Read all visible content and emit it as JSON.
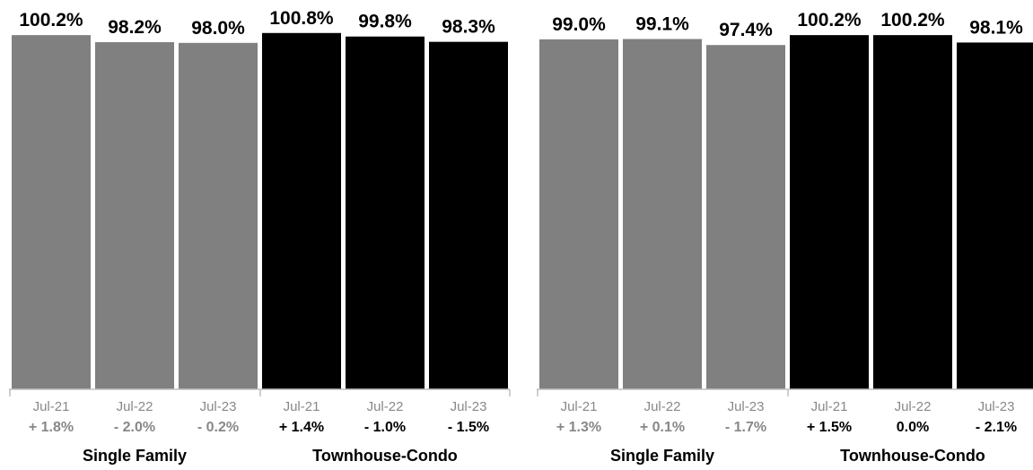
{
  "colors": {
    "single_family": "#808080",
    "townhouse_condo": "#000000",
    "axis": "#bfbfbf",
    "period_text": "#888888"
  },
  "chart_data": [
    {
      "type": "bar",
      "ylim": [
        0,
        101
      ],
      "grid": false,
      "groups": [
        {
          "name": "Single Family",
          "color_key": "single_family",
          "categories": [
            "Jul-21",
            "Jul-22",
            "Jul-23"
          ],
          "values": [
            100.2,
            98.2,
            98.0
          ],
          "value_labels": [
            "100.2%",
            "98.2%",
            "98.0%"
          ],
          "changes": [
            "+ 1.8%",
            "- 2.0%",
            "- 0.2%"
          ]
        },
        {
          "name": "Townhouse-Condo",
          "color_key": "townhouse_condo",
          "categories": [
            "Jul-21",
            "Jul-22",
            "Jul-23"
          ],
          "values": [
            100.8,
            99.8,
            98.3
          ],
          "value_labels": [
            "100.8%",
            "99.8%",
            "98.3%"
          ],
          "changes": [
            "+ 1.4%",
            "- 1.0%",
            "- 1.5%"
          ]
        }
      ]
    },
    {
      "type": "bar",
      "ylim": [
        0,
        101
      ],
      "grid": false,
      "groups": [
        {
          "name": "Single Family",
          "color_key": "single_family",
          "categories": [
            "Jul-21",
            "Jul-22",
            "Jul-23"
          ],
          "values": [
            99.0,
            99.1,
            97.4
          ],
          "value_labels": [
            "99.0%",
            "99.1%",
            "97.4%"
          ],
          "changes": [
            "+ 1.3%",
            "+ 0.1%",
            "- 1.7%"
          ]
        },
        {
          "name": "Townhouse-Condo",
          "color_key": "townhouse_condo",
          "categories": [
            "Jul-21",
            "Jul-22",
            "Jul-23"
          ],
          "values": [
            100.2,
            100.2,
            98.1
          ],
          "value_labels": [
            "100.2%",
            "100.2%",
            "98.1%"
          ],
          "changes": [
            "+ 1.5%",
            "0.0%",
            "- 2.1%"
          ]
        }
      ]
    }
  ]
}
